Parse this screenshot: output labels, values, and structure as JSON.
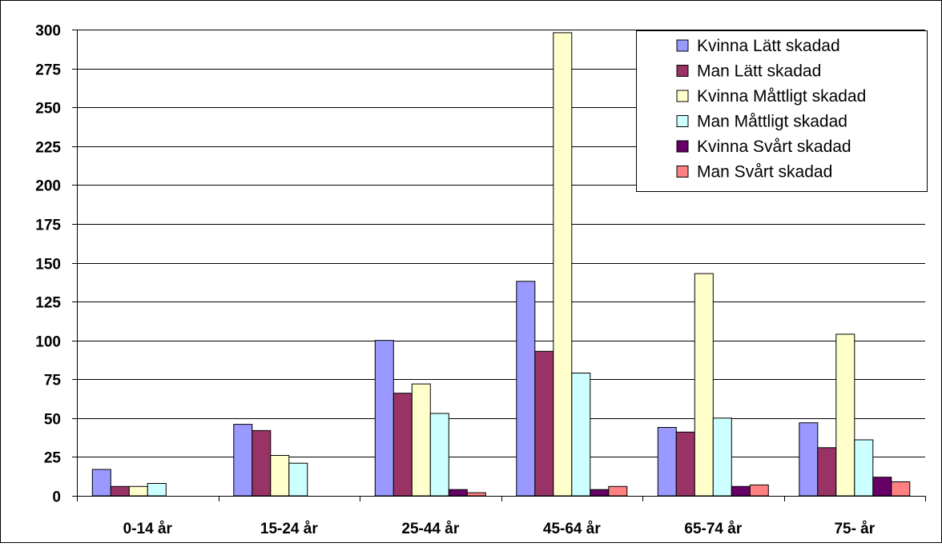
{
  "chart_data": {
    "type": "bar",
    "title": "",
    "xlabel": "",
    "ylabel": "",
    "categories": [
      "0-14 år",
      "15-24 år",
      "25-44 år",
      "45-64 år",
      "65-74 år",
      "75- år"
    ],
    "ylim": [
      0,
      300
    ],
    "yticks": [
      0,
      25,
      50,
      75,
      100,
      125,
      150,
      175,
      200,
      225,
      250,
      275,
      300
    ],
    "grid": true,
    "legend_position": "top-right",
    "series": [
      {
        "name": "Kvinna Lätt skadad",
        "color": "#9999ff",
        "values": [
          17,
          46,
          100,
          138,
          44,
          47
        ]
      },
      {
        "name": "Man Lätt skadad",
        "color": "#993366",
        "values": [
          6,
          42,
          66,
          93,
          41,
          31
        ]
      },
      {
        "name": "Kvinna Måttligt skadad",
        "color": "#ffffcc",
        "values": [
          6,
          26,
          72,
          298,
          143,
          104
        ]
      },
      {
        "name": "Man Måttligt skadad",
        "color": "#ccffff",
        "values": [
          8,
          21,
          53,
          79,
          50,
          36
        ]
      },
      {
        "name": "Kvinna Svårt skadad",
        "color": "#660066",
        "values": [
          0,
          0,
          4,
          4,
          6,
          12
        ]
      },
      {
        "name": "Man Svårt skadad",
        "color": "#ff8080",
        "values": [
          0,
          0,
          2,
          6,
          7,
          9
        ]
      }
    ]
  }
}
